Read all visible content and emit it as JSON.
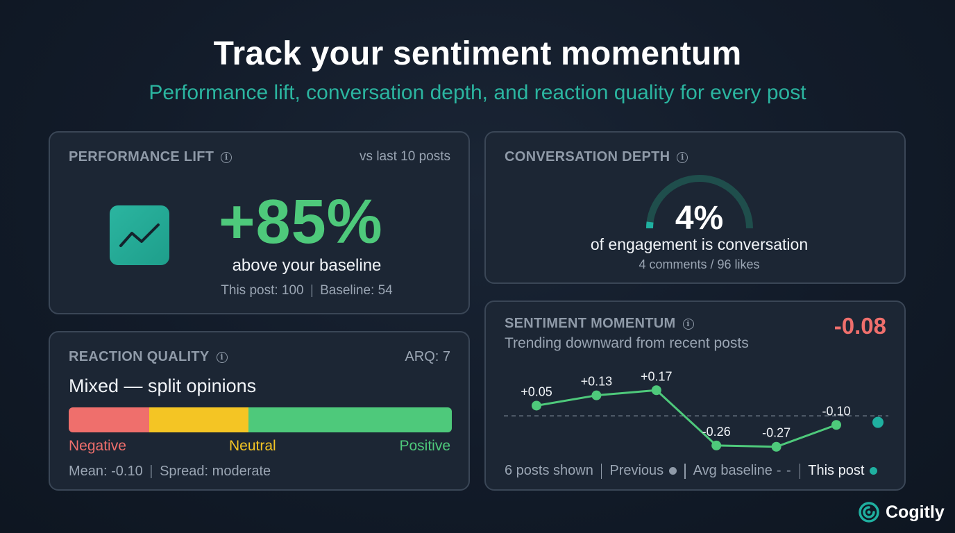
{
  "header": {
    "title": "Track your sentiment momentum",
    "subtitle": "Performance lift, conversation depth, and reaction quality for every post"
  },
  "performance_lift": {
    "title": "PERFORMANCE LIFT",
    "comparison": "vs last 10 posts",
    "value": "+85%",
    "description": "above your baseline",
    "this_post": "This post: 100",
    "baseline": "Baseline: 54",
    "icon": "trend-up-icon"
  },
  "conversation_depth": {
    "title": "CONVERSATION DEPTH",
    "value": "4%",
    "gauge_fraction": 0.04,
    "description": "of engagement is conversation",
    "detail": "4 comments / 96 likes"
  },
  "reaction_quality": {
    "title": "REACTION QUALITY",
    "arq": "ARQ: 7",
    "summary": "Mixed — split opinions",
    "segments": [
      {
        "label": "Negative",
        "fraction": 0.21,
        "color": "#ef6f6c"
      },
      {
        "label": "Neutral",
        "fraction": 0.26,
        "color": "#f4c524"
      },
      {
        "label": "Positive",
        "fraction": 0.53,
        "color": "#4ec97b"
      }
    ],
    "mean": "Mean: -0.10",
    "spread": "Spread: moderate"
  },
  "sentiment_momentum": {
    "title": "SENTIMENT MOMENTUM",
    "value": "-0.08",
    "trend": "Trending downward from recent posts",
    "legend": {
      "posts_shown": "6 posts shown",
      "previous": "Previous",
      "avg_baseline": "Avg baseline",
      "this_post": "This post"
    }
  },
  "chart_data": {
    "type": "line",
    "title": "",
    "xlabel": "",
    "ylabel": "",
    "x": [
      1,
      2,
      3,
      4,
      5,
      6
    ],
    "series": [
      {
        "name": "Previous",
        "values": [
          0.05,
          0.13,
          0.17,
          -0.26,
          -0.27,
          -0.1
        ]
      }
    ],
    "data_labels": [
      "+0.05",
      "+0.13",
      "+0.17",
      "-0.26",
      "-0.27",
      "-0.10"
    ],
    "this_post": -0.08,
    "baseline": -0.03,
    "ylim": [
      -0.32,
      0.22
    ],
    "grid": false,
    "legend_placement": "bottom",
    "colors": {
      "line": "#4ec97b",
      "this_post": "#1fb0a0",
      "baseline": "#6b7785"
    }
  },
  "brand": {
    "name": "Cogitly",
    "icon": "cogitly-logo-icon"
  }
}
